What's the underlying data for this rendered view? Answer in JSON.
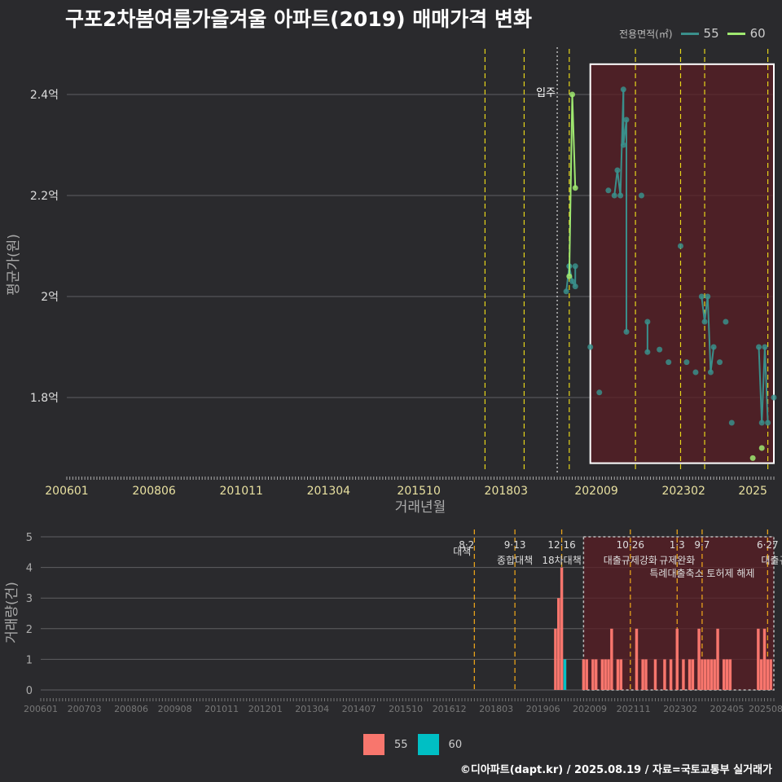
{
  "title": "구포2차봄여름가을겨울 아파트(2019) 매매가격 변화",
  "legend_top": {
    "title": "전용면적(㎡)",
    "items": [
      {
        "label": "55",
        "color": "#3a8f8b"
      },
      {
        "label": "60",
        "color": "#9fe870"
      }
    ]
  },
  "legend_bottom": {
    "items": [
      {
        "label": "55",
        "color": "#f8766d"
      },
      {
        "label": "60",
        "color": "#00bfc4"
      }
    ]
  },
  "footer": "©디아파트(dapt.kr) / 2025.08.19 / 자료=국토교통부 실거래가",
  "chart_data": [
    {
      "type": "line",
      "title": "구포2차봄여름가을겨울 아파트(2019) 매매가격 변화",
      "xlabel": "거래년월",
      "ylabel": "평균가(원)",
      "xlim": [
        "2006-01",
        "2025-08"
      ],
      "ylim": [
        1.65,
        2.5
      ],
      "x_ticks": [
        "200601",
        "200806",
        "201011",
        "201304",
        "201510",
        "201803",
        "202009",
        "202302",
        "2025"
      ],
      "y_ticks": [
        {
          "value": 1.8,
          "label": "1.8억"
        },
        {
          "value": 2.0,
          "label": "2억"
        },
        {
          "value": 2.2,
          "label": "2.2억"
        },
        {
          "value": 2.4,
          "label": "2.4억"
        }
      ],
      "policy_lines": [
        "2017-08",
        "2018-09",
        "2019-12",
        "2021-10",
        "2023-01",
        "2023-09",
        "2025-06"
      ],
      "move_in": {
        "x": "2019-08",
        "label": "입주"
      },
      "highlight": {
        "from": "2020-07",
        "to": "2025-08",
        "ymin": 1.67,
        "ymax": 2.46
      },
      "series": [
        {
          "name": "55",
          "color": "#3a8f8b",
          "x": [
            "2019-11",
            "2019-12",
            "2019-12",
            "2020-01",
            "2020-02",
            "2020-02",
            "2020-07",
            "2020-10",
            "2021-01",
            "2021-03",
            "2021-04",
            "2021-05",
            "2021-06",
            "2021-06",
            "2021-07",
            "2021-07",
            "2021-12",
            "2022-02",
            "2022-02",
            "2022-06",
            "2022-09",
            "2023-01",
            "2023-03",
            "2023-06",
            "2023-08",
            "2023-09",
            "2023-10",
            "2023-11",
            "2023-12",
            "2024-02",
            "2024-04",
            "2024-06",
            "2025-03",
            "2025-04",
            "2025-05",
            "2025-06",
            "2025-08"
          ],
          "values": [
            2.01,
            2.06,
            2.06,
            2.03,
            2.02,
            2.06,
            1.9,
            1.81,
            2.21,
            2.2,
            2.25,
            2.2,
            2.41,
            2.3,
            2.35,
            1.93,
            2.2,
            1.95,
            1.89,
            1.895,
            1.87,
            2.1,
            1.87,
            1.85,
            2.0,
            1.95,
            2.0,
            1.85,
            1.9,
            1.87,
            1.95,
            1.75,
            1.9,
            1.75,
            1.9,
            1.75,
            1.8
          ]
        },
        {
          "name": "60",
          "color": "#9fe870",
          "x": [
            "2019-12",
            "2020-01",
            "2020-02",
            "2025-01",
            "2025-04"
          ],
          "values": [
            2.04,
            2.4,
            2.215,
            1.68,
            1.7
          ]
        }
      ]
    },
    {
      "type": "bar",
      "xlabel": "",
      "ylabel": "거래량(건)",
      "ylim": [
        0,
        5
      ],
      "x_ticks": [
        "200601",
        "200703",
        "200806",
        "200908",
        "201011",
        "201201",
        "201304",
        "201407",
        "201510",
        "201612",
        "201803",
        "201906",
        "202009",
        "202111",
        "202302",
        "202405",
        "202508"
      ],
      "y_ticks": [
        0,
        1,
        2,
        3,
        4,
        5
      ],
      "policies": [
        {
          "x": "2017-08",
          "date": "8·2",
          "text": "대책"
        },
        {
          "x": "2018-09",
          "date": "9·13",
          "text": "종합대책"
        },
        {
          "x": "2019-12",
          "date": "12·16",
          "text": "18차대책"
        },
        {
          "x": "2021-10",
          "date": "10·26",
          "text": "대출규제강화"
        },
        {
          "x": "2023-01",
          "date": "1·3",
          "text": "규제완화"
        },
        {
          "x": "2023-09",
          "date": "9·7",
          "text": "특례대출축소 토허제 해제"
        },
        {
          "x": "2025-06",
          "date": "6·27",
          "text": "대출규"
        }
      ],
      "series": [
        {
          "name": "55",
          "color": "#f8766d",
          "x": [
            "2019-10",
            "2019-11",
            "2019-12",
            "2020-01",
            "2020-07",
            "2020-08",
            "2020-10",
            "2020-11",
            "2021-01",
            "2021-02",
            "2021-03",
            "2021-04",
            "2021-06",
            "2021-07",
            "2021-12",
            "2022-02",
            "2022-03",
            "2022-06",
            "2022-09",
            "2022-11",
            "2023-01",
            "2023-03",
            "2023-05",
            "2023-06",
            "2023-08",
            "2023-09",
            "2023-10",
            "2023-11",
            "2023-12",
            "2024-01",
            "2024-02",
            "2024-04",
            "2024-05",
            "2024-06",
            "2025-03",
            "2025-04",
            "2025-05",
            "2025-06",
            "2025-07"
          ],
          "values": [
            2,
            3,
            4,
            1,
            1,
            1,
            1,
            1,
            1,
            1,
            1,
            2,
            1,
            1,
            2,
            1,
            1,
            1,
            1,
            1,
            2,
            1,
            1,
            1,
            2,
            1,
            1,
            1,
            1,
            1,
            2,
            1,
            1,
            1,
            2,
            1,
            2,
            1,
            1
          ]
        },
        {
          "name": "60",
          "color": "#00bfc4",
          "x": [
            "2020-01"
          ],
          "values": [
            1
          ]
        }
      ]
    }
  ]
}
